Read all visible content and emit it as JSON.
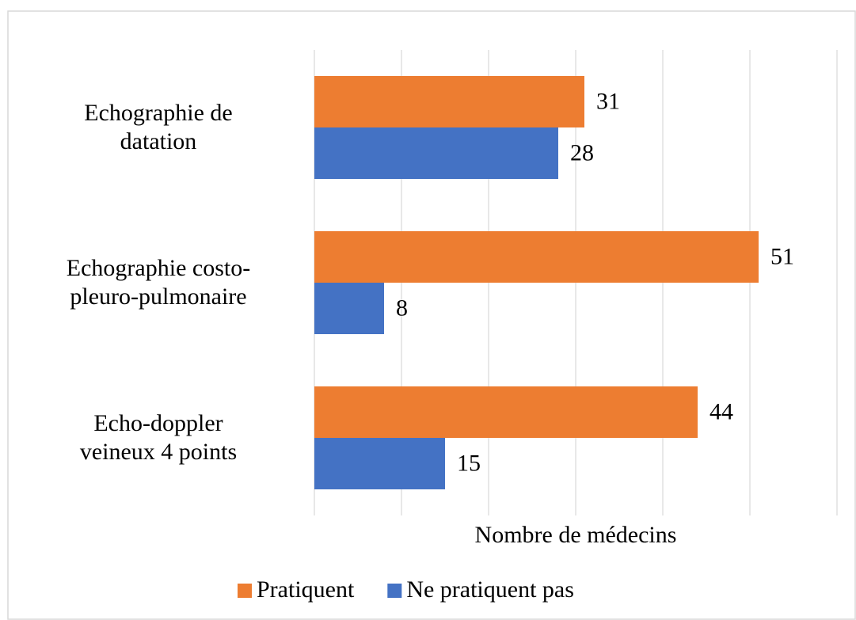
{
  "chart_data": {
    "type": "hbar",
    "x_label": "Nombre de médecins",
    "categories": [
      "Echographie de\ndatation",
      "Echographie costo-\npleuro-pulmonaire",
      "Echo-doppler \nveineux 4 points"
    ],
    "series": [
      {
        "name": "Pratiquent",
        "color": "#ed7d31",
        "values": [
          31,
          51,
          44
        ]
      },
      {
        "name": "Ne pratiquent pas",
        "color": "#4472c4",
        "values": [
          28,
          8,
          15
        ]
      }
    ],
    "xlim": [
      0,
      60
    ],
    "xticks": [
      0,
      10,
      20,
      30,
      40,
      50,
      60
    ],
    "grid": true,
    "legend": "bottom"
  }
}
